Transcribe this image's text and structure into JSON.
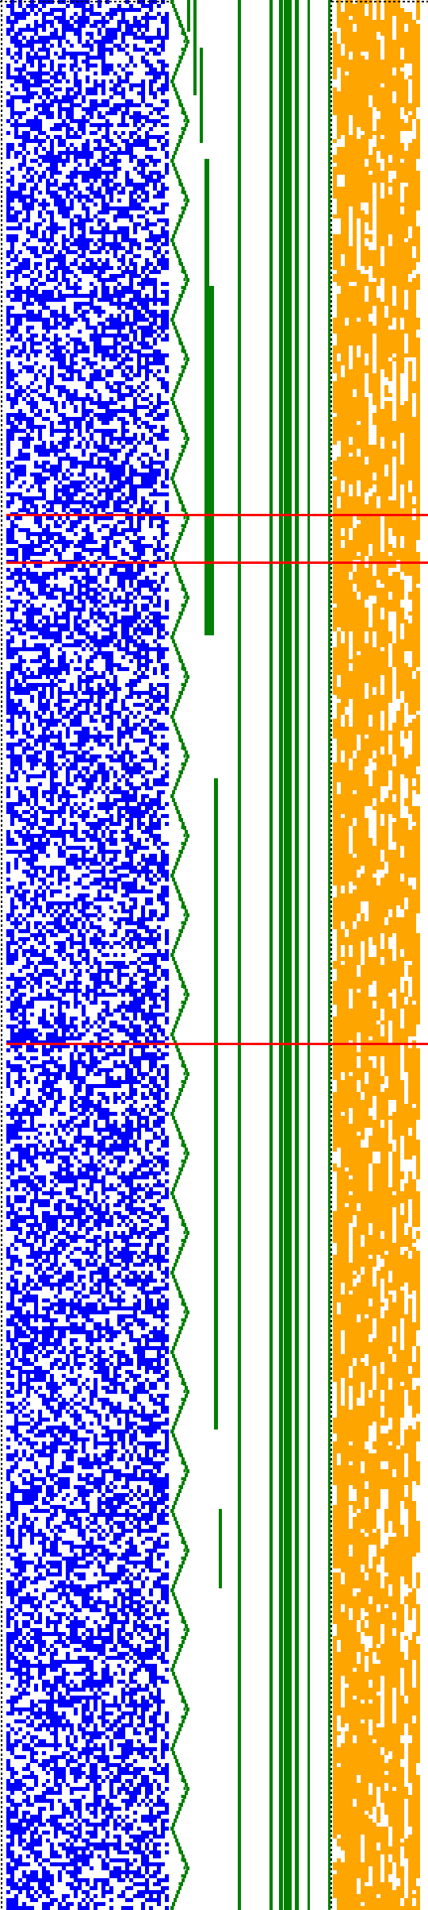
{
  "colors": {
    "background": "#ffffff",
    "random_cells": "#0000ff",
    "staircase": "#008000",
    "right_cells": "#ffa500",
    "markers": "#ff0000",
    "dotted_border": "#000000"
  },
  "marker_rows_fraction": [
    0.269,
    0.294,
    0.546
  ]
}
